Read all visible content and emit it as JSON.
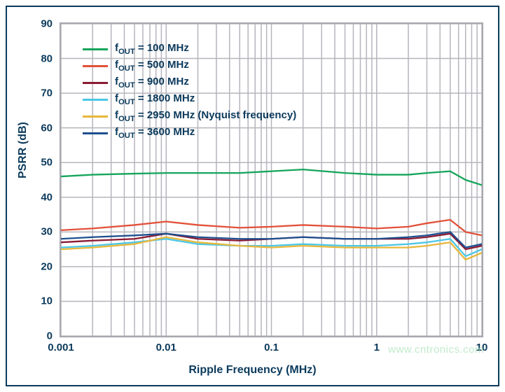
{
  "chart": {
    "type": "line",
    "background_color": "#ffffff",
    "frame_border_color": "#0b3a5c",
    "plot_border_color": "#a8a8b0",
    "grid_color": "#b5b5bd",
    "grid_stroke_width": 1.5,
    "xlabel": "Ripple Frequency (MHz)",
    "ylabel": "PSRR (dB)",
    "label_fontsize": 16,
    "label_color": "#0b3a5c",
    "tick_fontsize": 15,
    "tick_color": "#0b3a5c",
    "xlim": [
      0.001,
      10
    ],
    "xscale": "log",
    "x_major_ticks": [
      0.001,
      0.01,
      0.1,
      1,
      10
    ],
    "x_tick_labels": [
      "0.001",
      "0.01",
      "0.1",
      "1",
      "10"
    ],
    "x_minor_ticks_per_decade": [
      2,
      3,
      4,
      5,
      6,
      7,
      8,
      9
    ],
    "ylim": [
      0,
      90
    ],
    "yscale": "linear",
    "y_major_ticks": [
      0,
      10,
      20,
      30,
      40,
      50,
      60,
      70,
      80,
      90
    ],
    "line_width": 2.3,
    "legend": {
      "position": "upper-left-inside",
      "fontsize": 15,
      "prefix": "f",
      "subscript": "OUT",
      "label_color": "#0b3a5c"
    },
    "series_x": [
      0.001,
      0.002,
      0.005,
      0.01,
      0.02,
      0.05,
      0.1,
      0.2,
      0.5,
      1,
      2,
      3,
      5,
      7,
      10
    ],
    "series": [
      {
        "name": "100 MHz",
        "color": "#14a55a",
        "label_suffix": " = 100 MHz",
        "y": [
          46,
          46.5,
          46.8,
          47,
          47,
          47,
          47.5,
          48,
          47,
          46.5,
          46.5,
          47,
          47.5,
          45,
          43.5
        ]
      },
      {
        "name": "500 MHz",
        "color": "#e2513a",
        "label_suffix": " = 500 MHz",
        "y": [
          30.5,
          31,
          32,
          33,
          32,
          31.2,
          31.5,
          32,
          31.5,
          31,
          31.5,
          32.5,
          33.5,
          30,
          29
        ]
      },
      {
        "name": "900 MHz",
        "color": "#8a1a33",
        "label_suffix": " = 900 MHz",
        "y": [
          27,
          27.5,
          28,
          29.5,
          28,
          27.5,
          28,
          28.5,
          28,
          28,
          28,
          28.5,
          29.5,
          25,
          26
        ]
      },
      {
        "name": "1800 MHz",
        "color": "#4cc7e6",
        "label_suffix": " = 1800 MHz",
        "y": [
          25.5,
          26,
          27,
          28,
          26.5,
          26,
          26,
          26.5,
          26,
          26,
          26.5,
          27,
          28,
          23,
          25
        ]
      },
      {
        "name": "2950 MHz (Nyquist frequency)",
        "color": "#e7b73b",
        "label_suffix": " = 2950 MHz (Nyquist frequency)",
        "y": [
          25,
          25.5,
          26.5,
          28.5,
          27,
          26,
          25.5,
          26,
          25.5,
          25.5,
          25.5,
          26,
          27,
          22,
          24
        ]
      },
      {
        "name": "3600 MHz",
        "color": "#1e4f8f",
        "label_suffix": " = 3600 MHz",
        "y": [
          28,
          28.5,
          29,
          29.5,
          28.5,
          28,
          28,
          28.5,
          28,
          28,
          28.5,
          29,
          30,
          25.5,
          26.5
        ]
      }
    ],
    "watermark": "www.cntronics.com",
    "watermark_color": "#9fe0b0"
  }
}
